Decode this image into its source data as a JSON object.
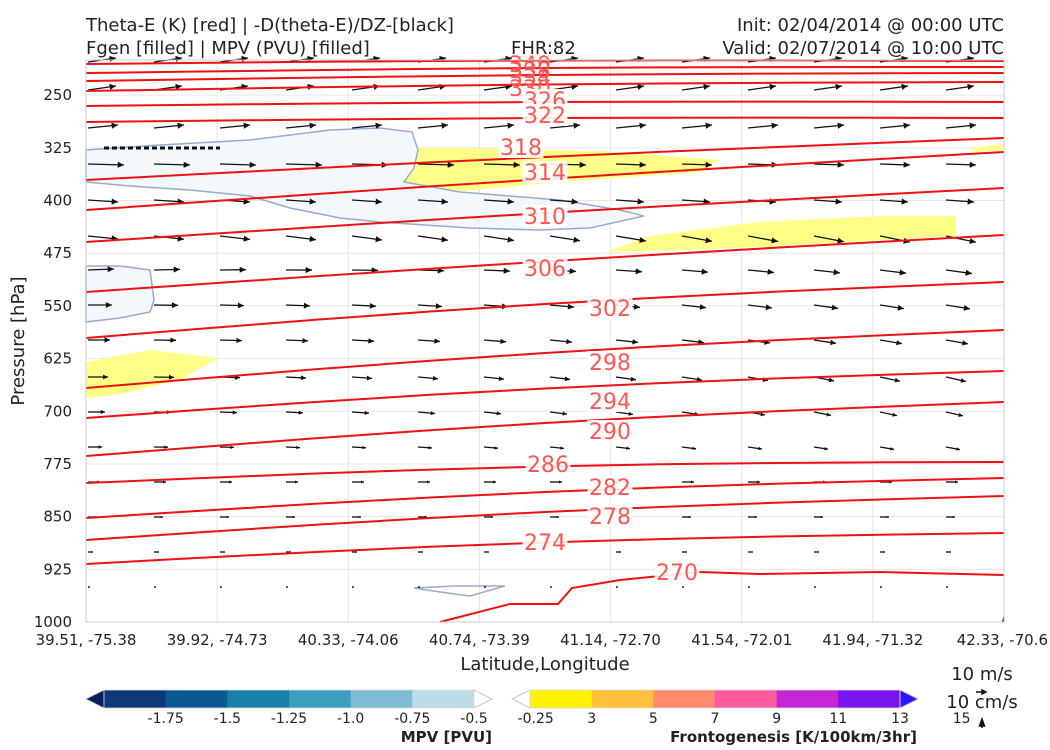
{
  "header": {
    "title_line1": "Theta-E (K) [red] | -D(theta-E)/DZ-[black]",
    "title_line2": "Fgen [filled] | MPV (PVU) [filled]",
    "fhr": "FHR:82",
    "init": "Init: 02/04/2014 @ 00:00 UTC",
    "valid": "Valid: 02/07/2014 @ 10:00 UTC"
  },
  "chart_data": {
    "type": "cross-section",
    "xlabel": "Latitude,Longitude",
    "ylabel": "Pressure [hPa]",
    "x_ticks": [
      "39.51, -75.38",
      "39.92, -74.73",
      "40.33, -74.06",
      "40.74, -73.39",
      "41.14, -72.70",
      "41.54, -72.01",
      "41.94, -71.32",
      "42.33, -70.6"
    ],
    "y_ticks": [
      250,
      325,
      400,
      475,
      550,
      625,
      700,
      775,
      850,
      925,
      1000
    ],
    "ylim": [
      1000,
      200
    ],
    "theta_e_labels": [
      "340",
      "338",
      "334",
      "330",
      "326",
      "322",
      "318",
      "314",
      "310",
      "306",
      "302",
      "298",
      "294",
      "290",
      "286",
      "282",
      "278",
      "274",
      "270"
    ],
    "theta_e_color": "#ee1111",
    "theta_e_label_color": "#ff5555",
    "vector_color": "#111111",
    "fgen_fill_color": "#ffff88",
    "mpv_fill_color": "#f2f8fb",
    "mpv_outline_color": "#99aacc"
  },
  "vector_key": {
    "label_h": "10 m/s",
    "label_v": "10 cm/s"
  },
  "colorbar_mpv": {
    "title": "MPV [PVU]",
    "ticks": [
      "-1.75",
      "-1.5",
      "-1.25",
      "-1.0",
      "-0.75",
      "-0.5",
      "-0.25"
    ],
    "colors": [
      "#0a1e5e",
      "#0c3a78",
      "#0b5990",
      "#1a7fa8",
      "#3c9dc0",
      "#7cbcd4",
      "#bcdde8",
      "#ffffff"
    ]
  },
  "colorbar_fgen": {
    "title": "Frontogenesis [K/100km/3hr]",
    "ticks": [
      "3",
      "5",
      "7",
      "9",
      "11",
      "13",
      "15"
    ],
    "colors": [
      "#ffffff",
      "#fff200",
      "#ffc03c",
      "#ff8a6c",
      "#ff5aa0",
      "#c626d6",
      "#7a14f0",
      "#2c18ff"
    ]
  }
}
